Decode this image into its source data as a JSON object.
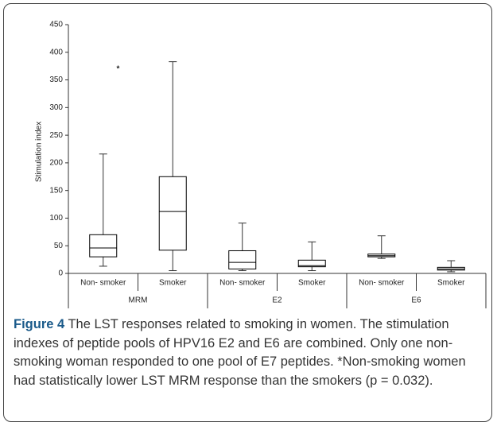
{
  "chart_data": {
    "type": "box",
    "y_label": "Stimulation index",
    "categories": [
      "Non- smoker",
      "Smoker",
      "Non- smoker",
      "Smoker",
      "Non- smoker",
      "Smoker"
    ],
    "groups": [
      "MRM",
      "E2",
      "E6"
    ],
    "group_size": 2,
    "min": [
      13,
      5,
      5,
      5,
      27,
      3
    ],
    "q1": [
      30,
      42,
      8,
      12,
      30,
      6
    ],
    "median": [
      46,
      112,
      20,
      14,
      32,
      8
    ],
    "q3": [
      70,
      175,
      41,
      24,
      35,
      11
    ],
    "max": [
      216,
      383,
      91,
      57,
      68,
      23
    ],
    "color": "#000000",
    "ylim": [
      0,
      450
    ],
    "yticks": [
      0,
      50,
      100,
      150,
      200,
      250,
      300,
      350,
      400,
      450
    ],
    "annotation": {
      "text": "*",
      "category": 0,
      "y": 370
    }
  },
  "caption": {
    "label": "Figure 4",
    "text": " The LST responses related to smoking in women. The stimulation indexes of peptide pools of HPV16 E2 and E6 are combined. Only one non-smoking woman responded to one pool of E7 peptides. *Non-smoking women had statistically lower LST MRM response than the smokers (p = 0.032)."
  }
}
